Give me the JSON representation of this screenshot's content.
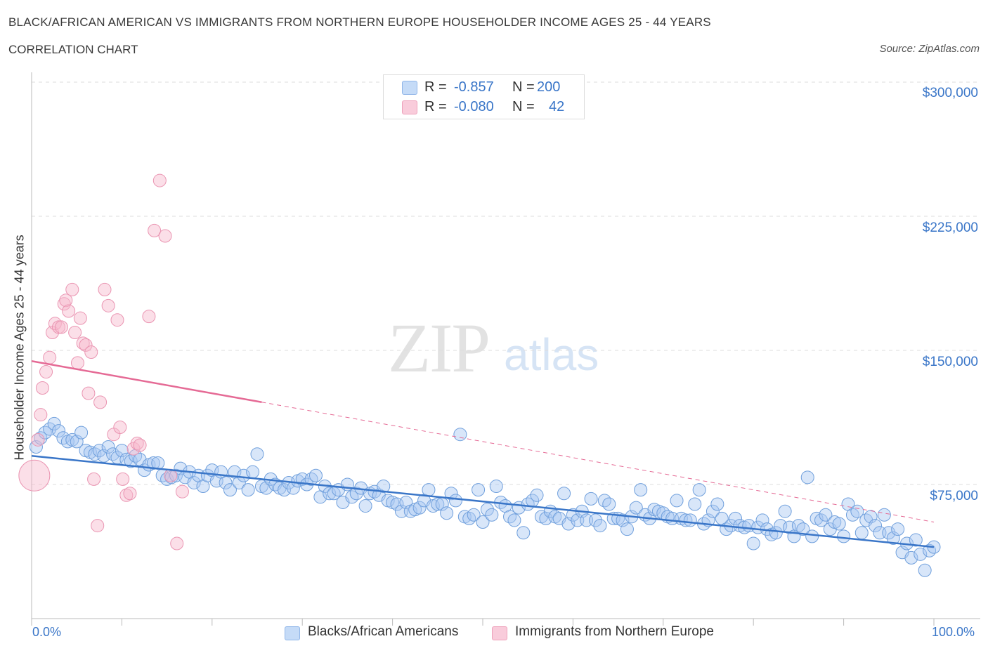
{
  "title": "BLACK/AFRICAN AMERICAN VS IMMIGRANTS FROM NORTHERN EUROPE HOUSEHOLDER INCOME AGES 25 - 44 YEARS",
  "subtitle": "CORRELATION CHART",
  "source": "Source: ZipAtlas.com",
  "watermark": {
    "zip": "ZIP",
    "atlas": "atlas"
  },
  "legend": {
    "rows": [
      {
        "r_label": "R =",
        "r_value": "-0.857",
        "n_label": "N =",
        "n_value": "200",
        "color": "#a9c8f2"
      },
      {
        "r_label": "R =",
        "r_value": "-0.080",
        "n_label": "N =",
        "n_value": "42",
        "color": "#f6b8cb"
      }
    ]
  },
  "bottom_legend": {
    "series1": "Blacks/African Americans",
    "series2": "Immigrants from Northern Europe"
  },
  "axes": {
    "x_min_label": "0.0%",
    "x_max_label": "100.0%",
    "y_title": "Householder Income Ages 25 - 44 years",
    "y_ticks": [
      "$300,000",
      "$225,000",
      "$150,000",
      "$75,000"
    ]
  },
  "colors": {
    "blue": "#3a76c8",
    "blue_fill": "#a9c8f2",
    "pink": "#e56a95",
    "pink_fill": "#f6b8cb"
  },
  "chart_data": {
    "type": "scatter",
    "xlim": [
      0,
      100
    ],
    "ylim": [
      0,
      300000
    ],
    "y_gridlines": [
      75000,
      150000,
      225000,
      300000
    ],
    "series": [
      {
        "name": "Blacks/African Americans",
        "color": "#3a76c8",
        "trend": {
          "x": [
            0,
            100
          ],
          "y": [
            91000,
            40000
          ]
        },
        "points": [
          [
            0.5,
            96000
          ],
          [
            1,
            101000
          ],
          [
            1.5,
            104000
          ],
          [
            2,
            106000
          ],
          [
            2.5,
            109000
          ],
          [
            3,
            105000
          ],
          [
            3.5,
            101000
          ],
          [
            4,
            99000
          ],
          [
            4.5,
            100000
          ],
          [
            5,
            99000
          ],
          [
            5.5,
            104000
          ],
          [
            6,
            94000
          ],
          [
            6.5,
            93000
          ],
          [
            7,
            92000
          ],
          [
            7.5,
            94000
          ],
          [
            8,
            91000
          ],
          [
            8.5,
            96000
          ],
          [
            9,
            92000
          ],
          [
            9.5,
            90000
          ],
          [
            10,
            94000
          ],
          [
            10.5,
            89000
          ],
          [
            11,
            88000
          ],
          [
            11.5,
            91000
          ],
          [
            12,
            89000
          ],
          [
            12.5,
            83000
          ],
          [
            13,
            86000
          ],
          [
            13.5,
            87000
          ],
          [
            14,
            87000
          ],
          [
            14.5,
            80000
          ],
          [
            15,
            78000
          ],
          [
            15.5,
            79000
          ],
          [
            16,
            80000
          ],
          [
            16.5,
            84000
          ],
          [
            17,
            79000
          ],
          [
            17.5,
            82000
          ],
          [
            18,
            76000
          ],
          [
            18.5,
            80000
          ],
          [
            19,
            74000
          ],
          [
            19.5,
            80000
          ],
          [
            20,
            83000
          ],
          [
            20.5,
            77000
          ],
          [
            21,
            82000
          ],
          [
            21.5,
            76000
          ],
          [
            22,
            72000
          ],
          [
            22.5,
            82000
          ],
          [
            23,
            76000
          ],
          [
            23.5,
            80000
          ],
          [
            24,
            72000
          ],
          [
            24.5,
            82000
          ],
          [
            25,
            92000
          ],
          [
            25.5,
            74000
          ],
          [
            26,
            73000
          ],
          [
            26.5,
            78000
          ],
          [
            27,
            75000
          ],
          [
            27.5,
            73000
          ],
          [
            28,
            72000
          ],
          [
            28.5,
            76000
          ],
          [
            29,
            73000
          ],
          [
            29.5,
            77000
          ],
          [
            30,
            78000
          ],
          [
            30.5,
            75000
          ],
          [
            31,
            78000
          ],
          [
            31.5,
            80000
          ],
          [
            32,
            68000
          ],
          [
            32.5,
            74000
          ],
          [
            33,
            70000
          ],
          [
            33.5,
            70000
          ],
          [
            34,
            72000
          ],
          [
            34.5,
            65000
          ],
          [
            35,
            75000
          ],
          [
            35.5,
            68000
          ],
          [
            36,
            70000
          ],
          [
            36.5,
            73000
          ],
          [
            37,
            63000
          ],
          [
            37.5,
            70000
          ],
          [
            38,
            71000
          ],
          [
            38.5,
            69000
          ],
          [
            39,
            74000
          ],
          [
            39.5,
            66000
          ],
          [
            40,
            65000
          ],
          [
            40.5,
            64000
          ],
          [
            41,
            60000
          ],
          [
            41.5,
            65000
          ],
          [
            42,
            60000
          ],
          [
            42.5,
            61000
          ],
          [
            43,
            62000
          ],
          [
            43.5,
            66000
          ],
          [
            44,
            72000
          ],
          [
            44.5,
            63000
          ],
          [
            45,
            64000
          ],
          [
            45.5,
            64000
          ],
          [
            46,
            59000
          ],
          [
            46.5,
            70000
          ],
          [
            47,
            66000
          ],
          [
            47.5,
            103000
          ],
          [
            48,
            57000
          ],
          [
            48.5,
            56000
          ],
          [
            49,
            58000
          ],
          [
            49.5,
            72000
          ],
          [
            50,
            54000
          ],
          [
            50.5,
            61000
          ],
          [
            51,
            58000
          ],
          [
            51.5,
            74000
          ],
          [
            52,
            65000
          ],
          [
            52.5,
            63000
          ],
          [
            53,
            57000
          ],
          [
            53.5,
            55000
          ],
          [
            54,
            62000
          ],
          [
            54.5,
            48000
          ],
          [
            55,
            64000
          ],
          [
            55.5,
            66000
          ],
          [
            56,
            69000
          ],
          [
            56.5,
            57000
          ],
          [
            57,
            56000
          ],
          [
            57.5,
            60000
          ],
          [
            58,
            57000
          ],
          [
            58.5,
            56000
          ],
          [
            59,
            70000
          ],
          [
            59.5,
            53000
          ],
          [
            60,
            58000
          ],
          [
            60.5,
            55000
          ],
          [
            61,
            60000
          ],
          [
            61.5,
            55000
          ],
          [
            62,
            67000
          ],
          [
            62.5,
            55000
          ],
          [
            63,
            52000
          ],
          [
            63.5,
            66000
          ],
          [
            64,
            64000
          ],
          [
            64.5,
            56000
          ],
          [
            65,
            56000
          ],
          [
            65.5,
            55000
          ],
          [
            66,
            50000
          ],
          [
            66.5,
            57000
          ],
          [
            67,
            62000
          ],
          [
            67.5,
            72000
          ],
          [
            68,
            58000
          ],
          [
            68.5,
            56000
          ],
          [
            69,
            61000
          ],
          [
            69.5,
            60000
          ],
          [
            70,
            59000
          ],
          [
            70.5,
            57000
          ],
          [
            71,
            56000
          ],
          [
            71.5,
            66000
          ],
          [
            72,
            56000
          ],
          [
            72.5,
            55000
          ],
          [
            73,
            55000
          ],
          [
            73.5,
            64000
          ],
          [
            74,
            72000
          ],
          [
            74.5,
            53000
          ],
          [
            75,
            55000
          ],
          [
            75.5,
            60000
          ],
          [
            76,
            64000
          ],
          [
            76.5,
            56000
          ],
          [
            77,
            50000
          ],
          [
            77.5,
            52000
          ],
          [
            78,
            56000
          ],
          [
            78.5,
            52000
          ],
          [
            79,
            51000
          ],
          [
            79.5,
            52000
          ],
          [
            80,
            42000
          ],
          [
            80.5,
            51000
          ],
          [
            81,
            55000
          ],
          [
            81.5,
            50000
          ],
          [
            82,
            47000
          ],
          [
            82.5,
            48000
          ],
          [
            83,
            52000
          ],
          [
            83.5,
            60000
          ],
          [
            84,
            51000
          ],
          [
            84.5,
            46000
          ],
          [
            85,
            52000
          ],
          [
            85.5,
            50000
          ],
          [
            86,
            79000
          ],
          [
            86.5,
            46000
          ],
          [
            87,
            56000
          ],
          [
            87.5,
            55000
          ],
          [
            88,
            58000
          ],
          [
            88.5,
            50000
          ],
          [
            89,
            54000
          ],
          [
            89.5,
            53000
          ],
          [
            90,
            46000
          ],
          [
            90.5,
            64000
          ],
          [
            91,
            58000
          ],
          [
            91.5,
            60000
          ],
          [
            92,
            48000
          ],
          [
            92.5,
            55000
          ],
          [
            93,
            57000
          ],
          [
            93.5,
            52000
          ],
          [
            94,
            48000
          ],
          [
            94.5,
            58000
          ],
          [
            95,
            48000
          ],
          [
            95.5,
            45000
          ],
          [
            96,
            50000
          ],
          [
            96.5,
            37000
          ],
          [
            97,
            42000
          ],
          [
            97.5,
            34000
          ],
          [
            98,
            44000
          ],
          [
            98.5,
            36000
          ],
          [
            99,
            27000
          ],
          [
            99.5,
            38000
          ],
          [
            100,
            40000
          ]
        ]
      },
      {
        "name": "Immigrants from Northern Europe",
        "color": "#e56a95",
        "trend": {
          "x": [
            0,
            100
          ],
          "y": [
            144000,
            54000
          ]
        },
        "points": [
          [
            0.3,
            80000
          ],
          [
            0.7,
            100000
          ],
          [
            1,
            114000
          ],
          [
            1.2,
            129000
          ],
          [
            1.6,
            138000
          ],
          [
            2,
            146000
          ],
          [
            2.3,
            160000
          ],
          [
            2.6,
            165000
          ],
          [
            3,
            163000
          ],
          [
            3.3,
            163000
          ],
          [
            3.6,
            176000
          ],
          [
            3.8,
            178000
          ],
          [
            4.1,
            172000
          ],
          [
            4.5,
            184000
          ],
          [
            4.8,
            160000
          ],
          [
            5.1,
            143000
          ],
          [
            5.4,
            168000
          ],
          [
            5.7,
            154000
          ],
          [
            6,
            153000
          ],
          [
            6.3,
            126000
          ],
          [
            6.6,
            149000
          ],
          [
            6.9,
            78000
          ],
          [
            7.3,
            52000
          ],
          [
            7.6,
            121000
          ],
          [
            8.1,
            184000
          ],
          [
            8.5,
            175000
          ],
          [
            9.1,
            103000
          ],
          [
            9.5,
            167000
          ],
          [
            9.8,
            107000
          ],
          [
            10.1,
            78000
          ],
          [
            10.5,
            69000
          ],
          [
            10.9,
            70000
          ],
          [
            11.3,
            95000
          ],
          [
            11.7,
            98000
          ],
          [
            12,
            97000
          ],
          [
            13,
            169000
          ],
          [
            13.6,
            217000
          ],
          [
            14.2,
            245000
          ],
          [
            14.8,
            214000
          ],
          [
            15.4,
            80000
          ],
          [
            16.1,
            42000
          ],
          [
            16.7,
            71000
          ]
        ]
      }
    ]
  }
}
